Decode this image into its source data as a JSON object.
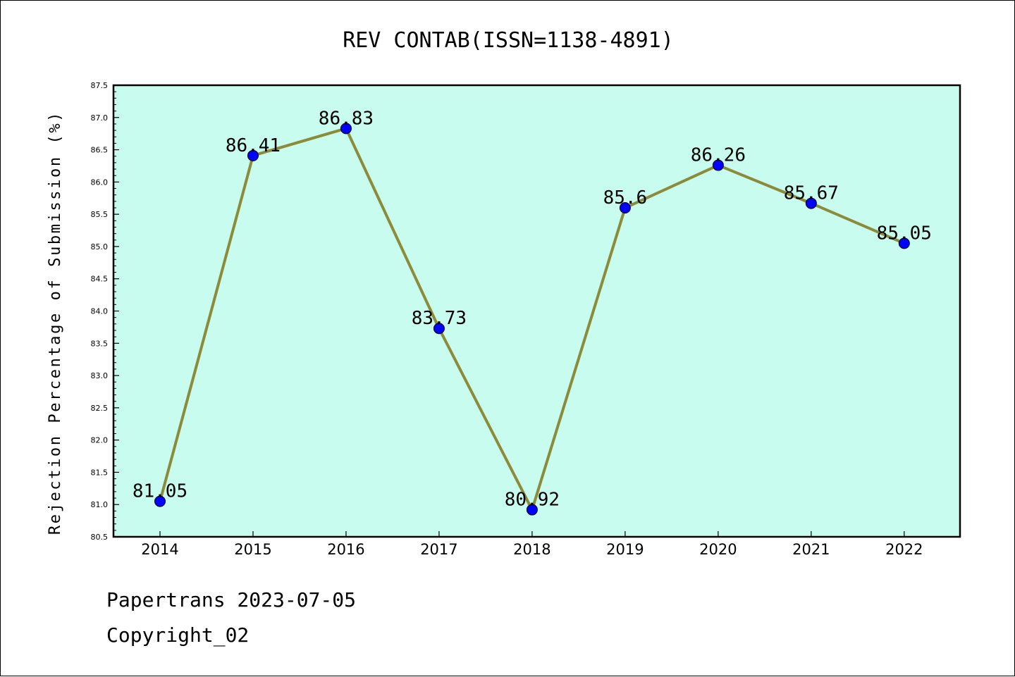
{
  "chart_data": {
    "type": "line",
    "title": "REV CONTAB(ISSN=1138-4891)",
    "xlabel": "",
    "ylabel": "Rejection Percentage of Submission (%)",
    "categories": [
      "2014",
      "2015",
      "2016",
      "2017",
      "2018",
      "2019",
      "2020",
      "2021",
      "2022"
    ],
    "series": [
      {
        "values": [
          81.05,
          86.41,
          86.83,
          83.73,
          80.92,
          85.6,
          86.26,
          85.67,
          85.05
        ],
        "data_labels": [
          "81.05",
          "86.41",
          "86.83",
          "83.73",
          "80.92",
          "85.6",
          "86.26",
          "85.67",
          "85.05"
        ]
      }
    ],
    "ylim": [
      80.5,
      87.5
    ],
    "yticks": [
      "80.5",
      "81.0",
      "81.5",
      "82.0",
      "82.5",
      "83.0",
      "83.5",
      "84.0",
      "84.5",
      "85.0",
      "85.5",
      "86.0",
      "86.5",
      "87.0",
      "87.5"
    ],
    "grid": false,
    "colors": {
      "plot_background": "#c8fcee",
      "line": "#8b8b3a",
      "marker": "#0000ff"
    }
  },
  "footer": {
    "line1": "Papertrans 2023-07-05",
    "line2": "Copyright_02"
  }
}
